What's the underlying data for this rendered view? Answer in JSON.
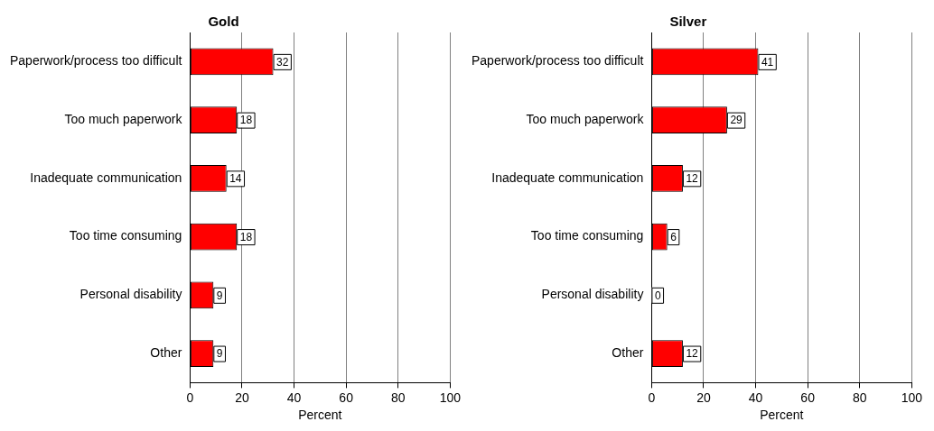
{
  "chart_data": [
    {
      "type": "bar",
      "title": "Gold",
      "orientation": "horizontal",
      "categories": [
        "Paperwork/process too difficult",
        "Too much paperwork",
        "Inadequate communication",
        "Too time consuming",
        "Personal disability",
        "Other"
      ],
      "values": [
        32,
        18,
        14,
        18,
        9,
        9
      ],
      "color": "#ff0000",
      "xlabel": "Percent",
      "xlim": [
        0,
        100
      ],
      "xticks": [
        0,
        20,
        40,
        60,
        80,
        100
      ],
      "grid": "x",
      "data_labels": true,
      "legend": false
    },
    {
      "type": "bar",
      "title": "Silver",
      "orientation": "horizontal",
      "categories": [
        "Paperwork/process too difficult",
        "Too much paperwork",
        "Inadequate communication",
        "Too time consuming",
        "Personal disability",
        "Other"
      ],
      "values": [
        41,
        29,
        12,
        6,
        0,
        12
      ],
      "color": "#ff0000",
      "xlabel": "Percent",
      "xlim": [
        0,
        100
      ],
      "xticks": [
        0,
        20,
        40,
        60,
        80,
        100
      ],
      "grid": "x",
      "data_labels": true,
      "legend": false
    }
  ]
}
